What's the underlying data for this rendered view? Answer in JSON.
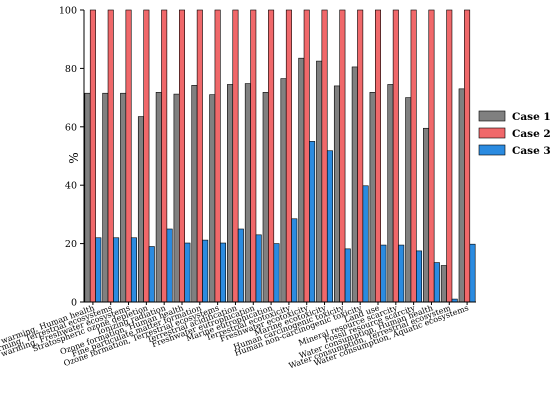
{
  "chart_data": {
    "type": "bar",
    "title": "",
    "xlabel": "",
    "ylabel": "%",
    "ylim": [
      0,
      100
    ],
    "yticks": [
      0,
      20,
      40,
      60,
      80,
      100
    ],
    "legend_position": "right",
    "grid": false,
    "categories": [
      "Global warming, Human health",
      "Global warming, Terrestrial ecosystems",
      "Global warming, Freshwater ecosystems",
      "Stratospheric ozone depletion",
      "Ionizing radiation",
      "Ozone formation, Human health",
      "Fine particulate matter formation",
      "Ozone formation, Terrestrial ecosystems",
      "Terrestrial acidification",
      "Freshwater eutrophication",
      "Marine eutrophication",
      "Terrestrial ecotoxicity",
      "Freshwater ecotoxicity",
      "Marine ecotoxicity",
      "Human carcinogenic toxicity",
      "Human non-carcinogenic toxicity",
      "Land use",
      "Mineral resource scarcity",
      "Fossil resource scarcity",
      "Water consumption, Human health",
      "Water consumption, Terrestrial ecosystem",
      "Water consumption, Aquatic ecosystems"
    ],
    "series": [
      {
        "name": "Case 1",
        "color": "#808080",
        "values": [
          71.5,
          71.5,
          71.5,
          63.5,
          71.8,
          71.2,
          74.2,
          71.0,
          74.5,
          74.8,
          71.8,
          76.5,
          83.5,
          82.5,
          74.0,
          80.5,
          71.8,
          74.5,
          70.0,
          59.5,
          12.5,
          73.0
        ]
      },
      {
        "name": "Case 2",
        "color": "#f0686a",
        "values": [
          100,
          100,
          100,
          100,
          100,
          100,
          100,
          100,
          100,
          100,
          100,
          100,
          100,
          100,
          100,
          100,
          100,
          100,
          100,
          100,
          100,
          100
        ]
      },
      {
        "name": "Case 3",
        "color": "#2b8be0",
        "values": [
          22.0,
          22.0,
          22.0,
          19.0,
          25.0,
          20.2,
          21.2,
          20.2,
          25.0,
          23.0,
          20.0,
          28.5,
          55.0,
          51.8,
          18.2,
          39.8,
          19.5,
          19.5,
          17.5,
          13.5,
          1.0,
          19.8
        ]
      }
    ]
  }
}
